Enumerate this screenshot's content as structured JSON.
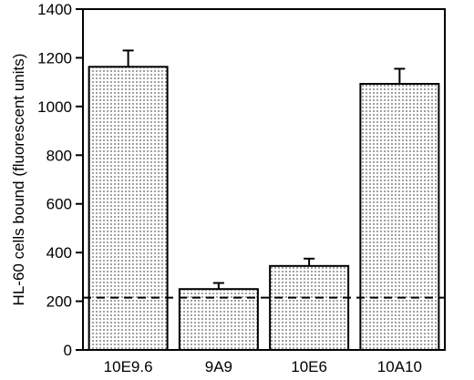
{
  "chart_data": {
    "type": "bar",
    "title": "",
    "xlabel": "",
    "ylabel": "HL-60 cells bound (fluorescent units)",
    "categories": [
      "10E9.6",
      "9A9",
      "10E6",
      "10A10"
    ],
    "values": [
      1163,
      250,
      345,
      1093
    ],
    "error_upper": [
      1230,
      275,
      375,
      1155
    ],
    "ylim": [
      0,
      1400
    ],
    "yticks": [
      0,
      200,
      400,
      600,
      800,
      1000,
      1200,
      1400
    ],
    "reference_line": 215,
    "grid": false,
    "legend": "none",
    "bar_fill": "dotted-gray",
    "colors": {
      "bar_dot": "#555555",
      "line": "#000000"
    }
  }
}
